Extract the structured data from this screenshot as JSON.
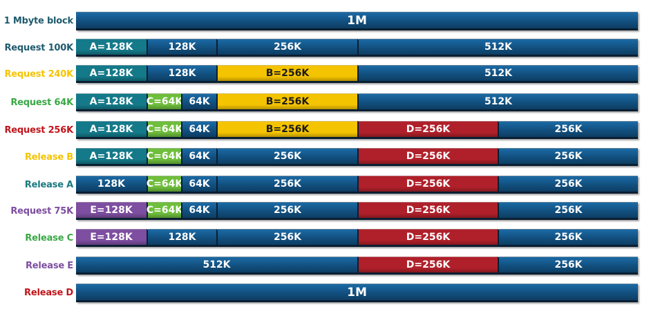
{
  "colors": {
    "free": "#12507f",
    "free_light": "#1b6aa5",
    "A": "#147a8a",
    "B": "#f5c400",
    "C": "#6fbe3c",
    "D": "#b0202a",
    "E": "#7e4ea1"
  },
  "rows": [
    {
      "label": "1 Mbyte block",
      "label_color": "#1f5b6e",
      "segments": [
        {
          "text": "1M",
          "size_k": 1024,
          "kind": "free"
        }
      ]
    },
    {
      "label": "Request 100K",
      "label_color": "#1f5b6e",
      "segments": [
        {
          "text": "A=128K",
          "size_k": 128,
          "kind": "A"
        },
        {
          "text": "128K",
          "size_k": 128,
          "kind": "free"
        },
        {
          "text": "256K",
          "size_k": 256,
          "kind": "free"
        },
        {
          "text": "512K",
          "size_k": 512,
          "kind": "free"
        }
      ]
    },
    {
      "label": "Request 240K",
      "label_color": "#f5c400",
      "segments": [
        {
          "text": "A=128K",
          "size_k": 128,
          "kind": "A"
        },
        {
          "text": "128K",
          "size_k": 128,
          "kind": "free"
        },
        {
          "text": "B=256K",
          "size_k": 256,
          "kind": "B"
        },
        {
          "text": "512K",
          "size_k": 512,
          "kind": "free"
        }
      ]
    },
    {
      "label": "Request 64K",
      "label_color": "#3aa845",
      "segments": [
        {
          "text": "A=128K",
          "size_k": 128,
          "kind": "A"
        },
        {
          "text": "C=64K",
          "size_k": 64,
          "kind": "C"
        },
        {
          "text": "64K",
          "size_k": 64,
          "kind": "free"
        },
        {
          "text": "B=256K",
          "size_k": 256,
          "kind": "B"
        },
        {
          "text": "512K",
          "size_k": 512,
          "kind": "free"
        }
      ]
    },
    {
      "label": "Request 256K",
      "label_color": "#c0151b",
      "segments": [
        {
          "text": "A=128K",
          "size_k": 128,
          "kind": "A"
        },
        {
          "text": "C=64K",
          "size_k": 64,
          "kind": "C"
        },
        {
          "text": "64K",
          "size_k": 64,
          "kind": "free"
        },
        {
          "text": "B=256K",
          "size_k": 256,
          "kind": "B"
        },
        {
          "text": "D=256K",
          "size_k": 256,
          "kind": "D"
        },
        {
          "text": "256K",
          "size_k": 256,
          "kind": "free"
        }
      ]
    },
    {
      "label": "Release B",
      "label_color": "#f5c400",
      "segments": [
        {
          "text": "A=128K",
          "size_k": 128,
          "kind": "A"
        },
        {
          "text": "C=64K",
          "size_k": 64,
          "kind": "C"
        },
        {
          "text": "64K",
          "size_k": 64,
          "kind": "free"
        },
        {
          "text": "256K",
          "size_k": 256,
          "kind": "free"
        },
        {
          "text": "D=256K",
          "size_k": 256,
          "kind": "D"
        },
        {
          "text": "256K",
          "size_k": 256,
          "kind": "free"
        }
      ]
    },
    {
      "label": "Release A",
      "label_color": "#1a7a80",
      "segments": [
        {
          "text": "128K",
          "size_k": 128,
          "kind": "free"
        },
        {
          "text": "C=64K",
          "size_k": 64,
          "kind": "C"
        },
        {
          "text": "64K",
          "size_k": 64,
          "kind": "free"
        },
        {
          "text": "256K",
          "size_k": 256,
          "kind": "free"
        },
        {
          "text": "D=256K",
          "size_k": 256,
          "kind": "D"
        },
        {
          "text": "256K",
          "size_k": 256,
          "kind": "free"
        }
      ]
    },
    {
      "label": "Request 75K",
      "label_color": "#7e4ea1",
      "segments": [
        {
          "text": "E=128K",
          "size_k": 128,
          "kind": "E"
        },
        {
          "text": "C=64K",
          "size_k": 64,
          "kind": "C"
        },
        {
          "text": "64K",
          "size_k": 64,
          "kind": "free"
        },
        {
          "text": "256K",
          "size_k": 256,
          "kind": "free"
        },
        {
          "text": "D=256K",
          "size_k": 256,
          "kind": "D"
        },
        {
          "text": "256K",
          "size_k": 256,
          "kind": "free"
        }
      ]
    },
    {
      "label": "Release C",
      "label_color": "#3aa845",
      "segments": [
        {
          "text": "E=128K",
          "size_k": 128,
          "kind": "E"
        },
        {
          "text": "128K",
          "size_k": 128,
          "kind": "free"
        },
        {
          "text": "256K",
          "size_k": 256,
          "kind": "free"
        },
        {
          "text": "D=256K",
          "size_k": 256,
          "kind": "D"
        },
        {
          "text": "256K",
          "size_k": 256,
          "kind": "free"
        }
      ]
    },
    {
      "label": "Release E",
      "label_color": "#7e4ea1",
      "segments": [
        {
          "text": "512K",
          "size_k": 512,
          "kind": "free"
        },
        {
          "text": "D=256K",
          "size_k": 256,
          "kind": "D"
        },
        {
          "text": "256K",
          "size_k": 256,
          "kind": "free"
        }
      ]
    },
    {
      "label": "Release D",
      "label_color": "#c0151b",
      "segments": [
        {
          "text": "1M",
          "size_k": 1024,
          "kind": "free"
        }
      ]
    }
  ]
}
